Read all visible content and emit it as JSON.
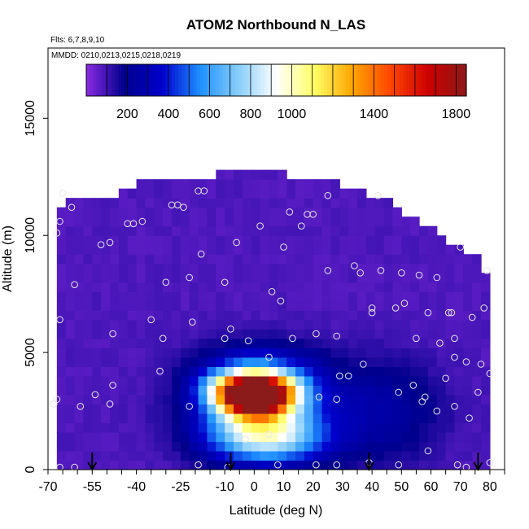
{
  "chart_data": {
    "type": "heatmap",
    "title": "ATOM2 Northbound N_LAS",
    "subtitle_flights": "Flts: 6,7,8,9,10",
    "subtitle_dates": "MMDD: 0210,0213,0215,0218,0219",
    "xlabel": "Latitude (deg N)",
    "ylabel": "Altitude (m)",
    "xlim": [
      -70,
      85
    ],
    "ylim": [
      0,
      18000
    ],
    "x_ticks": [
      -70,
      -55,
      -40,
      -25,
      -10,
      0,
      10,
      20,
      30,
      40,
      50,
      60,
      70,
      80
    ],
    "y_ticks": [
      0,
      5000,
      10000,
      15000
    ],
    "colorbar": {
      "range": [
        0,
        1850
      ],
      "ticks": [
        200,
        400,
        600,
        800,
        1000,
        1400,
        1800
      ],
      "colors": [
        "#8a2be2",
        "#00008b",
        "#0000cd",
        "#1e90ff",
        "#87cefa",
        "#ffffff",
        "#ffff66",
        "#ffa500",
        "#ff4500",
        "#cc0000",
        "#8b1a1a"
      ]
    },
    "background_value": 80,
    "envelope": [
      [
        -68,
        10500
      ],
      [
        -64,
        11800
      ],
      [
        -45,
        11800
      ],
      [
        -35,
        12500
      ],
      [
        -20,
        12500
      ],
      [
        5,
        12800
      ],
      [
        15,
        12500
      ],
      [
        25,
        12300
      ],
      [
        35,
        12000
      ],
      [
        45,
        11500
      ],
      [
        55,
        10700
      ],
      [
        65,
        9800
      ],
      [
        73,
        9300
      ],
      [
        78,
        8800
      ],
      [
        80,
        7000
      ],
      [
        80,
        0
      ],
      [
        -68,
        0
      ]
    ],
    "plumes": [
      {
        "lat": 0,
        "alt": 3100,
        "sx": 8,
        "sy": 500,
        "peak": 1750
      },
      {
        "lat": 0,
        "alt": 3700,
        "sx": 11,
        "sy": 500,
        "peak": 900
      },
      {
        "lat": 2,
        "alt": 2300,
        "sx": 12,
        "sy": 900,
        "peak": 600
      },
      {
        "lat": 5,
        "alt": 1200,
        "sx": 14,
        "sy": 700,
        "peak": 450
      },
      {
        "lat": 3,
        "alt": 2800,
        "sx": 18,
        "sy": 1500,
        "peak": 230
      },
      {
        "lat": 44,
        "alt": 2500,
        "sx": 14,
        "sy": 1500,
        "peak": 170
      },
      {
        "lat": 2,
        "alt": 4800,
        "sx": 14,
        "sy": 500,
        "peak": 160
      }
    ],
    "samples": [
      [
        -67,
        10100
      ],
      [
        -66,
        10600
      ],
      [
        -66,
        6400
      ],
      [
        -65,
        11800
      ],
      [
        -62,
        11200
      ],
      [
        -61,
        7900
      ],
      [
        -67,
        3000
      ],
      [
        -68,
        2800
      ],
      [
        -59,
        2700
      ],
      [
        -54,
        3200
      ],
      [
        -52,
        9600
      ],
      [
        -49,
        9700
      ],
      [
        -43,
        10500
      ],
      [
        -41,
        10500
      ],
      [
        -38,
        10600
      ],
      [
        -35,
        6400
      ],
      [
        -48,
        3600
      ],
      [
        -49,
        2800
      ],
      [
        -48,
        5800
      ],
      [
        -30,
        8000
      ],
      [
        -28,
        11300
      ],
      [
        -26,
        11300
      ],
      [
        -24,
        11200
      ],
      [
        -22,
        8200
      ],
      [
        -19,
        11900
      ],
      [
        -17,
        11900
      ],
      [
        -31,
        5600
      ],
      [
        -32,
        4200
      ],
      [
        -21,
        6300
      ],
      [
        -18,
        9200
      ],
      [
        -22,
        2700
      ],
      [
        -10,
        8000
      ],
      [
        -8,
        6000
      ],
      [
        -10,
        5600
      ],
      [
        -6,
        9700
      ],
      [
        -2,
        5500
      ],
      [
        2,
        10400
      ],
      [
        5,
        4800
      ],
      [
        6,
        7600
      ],
      [
        9,
        7200
      ],
      [
        10,
        9500
      ],
      [
        12,
        11000
      ],
      [
        13,
        5600
      ],
      [
        16,
        10400
      ],
      [
        18,
        10900
      ],
      [
        20,
        10900
      ],
      [
        21,
        5800
      ],
      [
        22,
        3100
      ],
      [
        25,
        8500
      ],
      [
        25,
        11700
      ],
      [
        28,
        5700
      ],
      [
        29,
        4000
      ],
      [
        28,
        3000
      ],
      [
        32,
        4000
      ],
      [
        34,
        8700
      ],
      [
        36,
        8400
      ],
      [
        37,
        4500
      ],
      [
        40,
        6900
      ],
      [
        40,
        6700
      ],
      [
        43,
        8500
      ],
      [
        42,
        11700
      ],
      [
        48,
        6900
      ],
      [
        49,
        3300
      ],
      [
        50,
        8400
      ],
      [
        51,
        7100
      ],
      [
        54,
        3600
      ],
      [
        55,
        5600
      ],
      [
        56,
        8300
      ],
      [
        57,
        2900
      ],
      [
        58,
        3100
      ],
      [
        59,
        6700
      ],
      [
        59,
        800
      ],
      [
        62,
        8200
      ],
      [
        62,
        2500
      ],
      [
        63,
        5400
      ],
      [
        65,
        3900
      ],
      [
        66,
        6700
      ],
      [
        67,
        6700
      ],
      [
        68,
        5600
      ],
      [
        68,
        4800
      ],
      [
        68,
        2700
      ],
      [
        70,
        9500
      ],
      [
        72,
        4600
      ],
      [
        73,
        2200
      ],
      [
        74,
        6500
      ],
      [
        76,
        3300
      ],
      [
        77,
        4500
      ],
      [
        78,
        6900
      ],
      [
        79,
        8500
      ],
      [
        80,
        4100
      ],
      [
        80,
        300
      ],
      [
        -66,
        100
      ],
      [
        -61,
        100
      ],
      [
        -19,
        200
      ],
      [
        -9,
        100
      ],
      [
        8,
        200
      ],
      [
        21,
        200
      ],
      [
        28,
        200
      ],
      [
        39,
        300
      ],
      [
        49,
        200
      ],
      [
        69,
        200
      ],
      [
        72,
        100
      ],
      [
        5,
        1500
      ],
      [
        -3,
        1300
      ]
    ],
    "arrows_lat": [
      -55,
      -8,
      39,
      76
    ]
  }
}
